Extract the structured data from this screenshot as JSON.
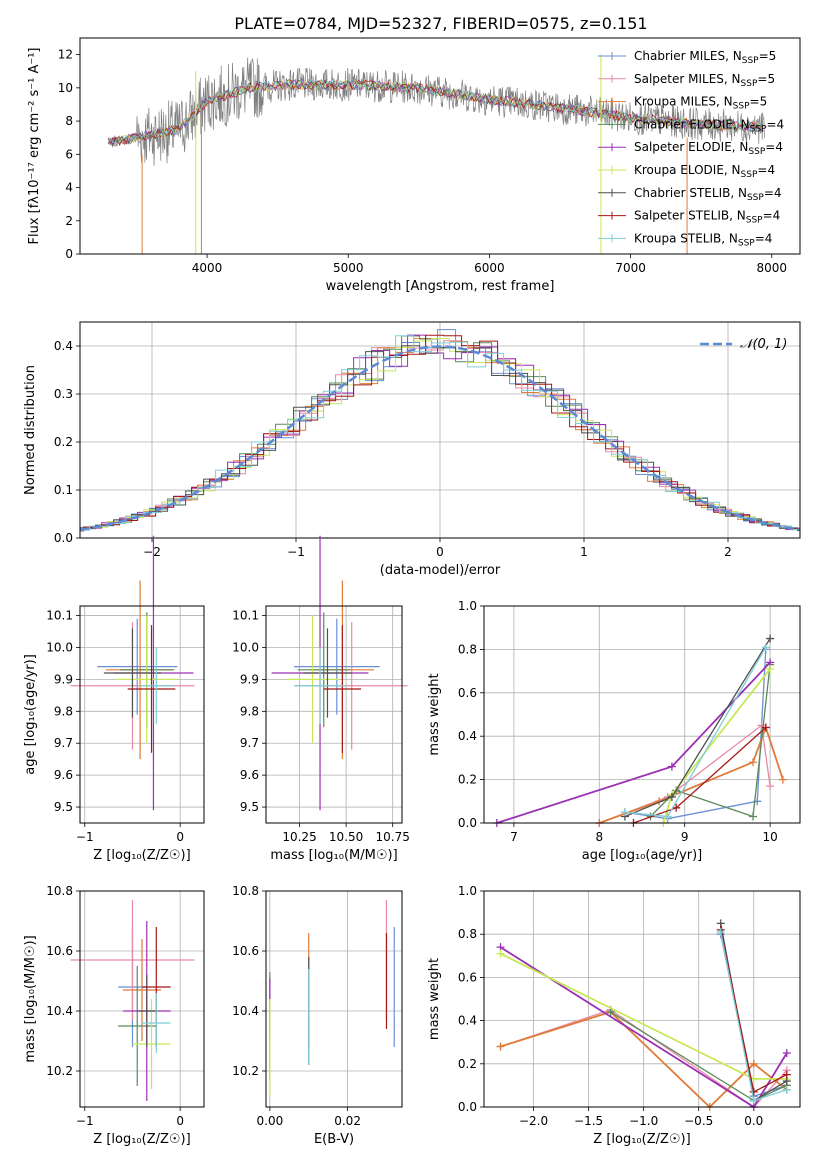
{
  "title": "PLATE=0784, MJD=52327, FIBERID=0575, z=0.151",
  "series_colors": [
    "#6a8fd6",
    "#e88aa7",
    "#e07b39",
    "#5a8a5a",
    "#9b30b5",
    "#c8e85a",
    "#505050",
    "#a51818",
    "#7ecfd8"
  ],
  "series_names": [
    "Chabrier MILES",
    "Salpeter MILES",
    "Kroupa MILES",
    "Chabrier ELODIE",
    "Salpeter ELODIE",
    "Kroupa ELODIE",
    "Chabrier STELIB",
    "Salpeter STELIB",
    "Kroupa STELIB"
  ],
  "chart_data": [
    {
      "type": "line",
      "name": "spectrum",
      "xlabel": "wavelength [Angstrom, rest frame]",
      "ylabel": "Flux [fλ10⁻¹⁷ erg cm⁻² s⁻¹ A⁻¹]",
      "xlim": [
        3100,
        8200
      ],
      "ylim": [
        0,
        13
      ],
      "xticks": [
        "4000",
        "5000",
        "6000",
        "7000",
        "8000"
      ],
      "yticks": [
        "0",
        "2",
        "4",
        "6",
        "8",
        "10",
        "12"
      ],
      "legend": [
        "Chabrier MILES, N_SSP=5",
        "Salpeter MILES, N_SSP=5",
        "Kroupa MILES, N_SSP=5",
        "Chabrier ELODIE, N_SSP=4",
        "Salpeter ELODIE, N_SSP=4",
        "Kroupa ELODIE, N_SSP=4",
        "Chabrier STELIB, N_SSP=4",
        "Salpeter STELIB, N_SSP=4",
        "Kroupa STELIB, N_SSP=4"
      ],
      "legend_placement": "upper right",
      "data_trend": {
        "x": [
          3300,
          3500,
          3800,
          4000,
          4300,
          4600,
          5000,
          5500,
          6000,
          6500,
          7000,
          7500,
          8000
        ],
        "y": [
          6.7,
          7.0,
          7.5,
          9.2,
          10.0,
          10.2,
          10.2,
          10.0,
          9.3,
          8.8,
          8.2,
          7.8,
          7.6
        ]
      }
    },
    {
      "type": "histogram",
      "name": "residuals",
      "xlabel": "(data-model)/error",
      "ylabel": "Normed distribution",
      "xlim": [
        -2.5,
        2.5
      ],
      "ylim": [
        0,
        0.45
      ],
      "xticks": [
        "−2",
        "−1",
        "0",
        "1",
        "2"
      ],
      "yticks": [
        "0.0",
        "0.1",
        "0.2",
        "0.3",
        "0.4"
      ],
      "legend": [
        "𝒩(0, 1)"
      ],
      "legend_placement": "upper right",
      "grid": true
    },
    {
      "type": "scatter",
      "name": "age-vs-Z",
      "xlabel": "Z [log₁₀(Z/Z☉)]",
      "ylabel": "age  [log₁₀(age/yr)]",
      "xlim": [
        -1.05,
        0.25
      ],
      "ylim": [
        9.45,
        10.13
      ],
      "xticks": [
        "−1",
        "0"
      ],
      "yticks": [
        "9.5",
        "9.6",
        "9.7",
        "9.8",
        "9.9",
        "10.0",
        "10.1"
      ],
      "grid": true,
      "points": [
        {
          "x": -0.45,
          "y": 9.94,
          "xerr": 0.42,
          "yerr": 0.15
        },
        {
          "x": -0.5,
          "y": 9.88,
          "xerr": 0.65,
          "yerr": 0.2
        },
        {
          "x": -0.42,
          "y": 9.93,
          "xerr": 0.36,
          "yerr": 0.28
        },
        {
          "x": -0.35,
          "y": 9.93,
          "xerr": 0.28,
          "yerr": 0.18
        },
        {
          "x": -0.28,
          "y": 9.92,
          "xerr": 0.42,
          "yerr": 0.43
        },
        {
          "x": -0.35,
          "y": 9.9,
          "xerr": 0.32,
          "yerr": 0.2
        },
        {
          "x": -0.5,
          "y": 9.92,
          "xerr": 0.3,
          "yerr": 0.14
        },
        {
          "x": -0.3,
          "y": 9.87,
          "xerr": 0.25,
          "yerr": 0.2
        },
        {
          "x": -0.25,
          "y": 9.88,
          "xerr": 0.18,
          "yerr": 0.12
        }
      ]
    },
    {
      "type": "scatter",
      "name": "age-vs-mass",
      "xlabel": "mass [log₁₀(M/M☉)]",
      "ylabel": "",
      "xlim": [
        10.07,
        10.8
      ],
      "ylim": [
        9.45,
        10.13
      ],
      "xticks": [
        "10.25",
        "10.50",
        "10.75"
      ],
      "yticks": [
        "9.5",
        "9.6",
        "9.7",
        "9.8",
        "9.9",
        "10.0",
        "10.1"
      ],
      "grid": true,
      "points": [
        {
          "x": 10.45,
          "y": 9.94,
          "xerr": 0.23,
          "yerr": 0.15
        },
        {
          "x": 10.53,
          "y": 9.88,
          "xerr": 0.3,
          "yerr": 0.2
        },
        {
          "x": 10.48,
          "y": 9.93,
          "xerr": 0.17,
          "yerr": 0.28
        },
        {
          "x": 10.38,
          "y": 9.93,
          "xerr": 0.14,
          "yerr": 0.18
        },
        {
          "x": 10.36,
          "y": 9.92,
          "xerr": 0.26,
          "yerr": 0.43
        },
        {
          "x": 10.32,
          "y": 9.9,
          "xerr": 0.14,
          "yerr": 0.2
        },
        {
          "x": 10.4,
          "y": 9.92,
          "xerr": 0.13,
          "yerr": 0.14
        },
        {
          "x": 10.48,
          "y": 9.87,
          "xerr": 0.1,
          "yerr": 0.2
        },
        {
          "x": 10.36,
          "y": 9.88,
          "xerr": 0.14,
          "yerr": 0.12
        }
      ]
    },
    {
      "type": "line",
      "name": "mass-weight-vs-age",
      "xlabel": "age  [log₁₀(age/yr)]",
      "ylabel": "mass weight",
      "xlim": [
        6.65,
        10.35
      ],
      "ylim": [
        0,
        1
      ],
      "xticks": [
        "7",
        "8",
        "9",
        "10"
      ],
      "yticks": [
        "0.0",
        "0.2",
        "0.4",
        "0.6",
        "0.8",
        "1.0"
      ],
      "grid": true,
      "series": [
        {
          "color_index": 0,
          "x": [
            8.3,
            8.8,
            9.85,
            9.95
          ],
          "y": [
            0.05,
            0.02,
            0.1,
            0.8
          ]
        },
        {
          "color_index": 1,
          "x": [
            8.0,
            8.8,
            9.9,
            10.0
          ],
          "y": [
            0.0,
            0.12,
            0.45,
            0.17
          ]
        },
        {
          "color_index": 2,
          "x": [
            8.0,
            8.7,
            9.8,
            9.95,
            10.15
          ],
          "y": [
            0.0,
            0.1,
            0.28,
            0.44,
            0.2
          ]
        },
        {
          "color_index": 3,
          "x": [
            8.6,
            8.9,
            9.8,
            10.0
          ],
          "y": [
            0.03,
            0.15,
            0.03,
            0.73
          ]
        },
        {
          "color_index": 4,
          "x": [
            6.8,
            8.85,
            10.0
          ],
          "y": [
            0.0,
            0.26,
            0.74
          ]
        },
        {
          "color_index": 5,
          "x": [
            8.75,
            8.85,
            10.0
          ],
          "y": [
            0.0,
            0.13,
            0.71
          ]
        },
        {
          "color_index": 6,
          "x": [
            8.3,
            8.85,
            10.0
          ],
          "y": [
            0.03,
            0.12,
            0.85
          ]
        },
        {
          "color_index": 7,
          "x": [
            8.4,
            8.9,
            9.95
          ],
          "y": [
            0.0,
            0.07,
            0.44
          ]
        },
        {
          "color_index": 8,
          "x": [
            8.3,
            8.8,
            9.95
          ],
          "y": [
            0.05,
            0.03,
            0.81
          ]
        }
      ]
    },
    {
      "type": "scatter",
      "name": "mass-vs-Z",
      "xlabel": "Z [log₁₀(Z/Z☉)]",
      "ylabel": "mass [log₁₀(M/M☉)]",
      "xlim": [
        -1.05,
        0.25
      ],
      "ylim": [
        10.08,
        10.8
      ],
      "xticks": [
        "−1",
        "0"
      ],
      "yticks": [
        "10.2",
        "10.4",
        "10.6",
        "10.8"
      ],
      "grid": true,
      "points": [
        {
          "x": -0.5,
          "y": 10.48,
          "xerr": 0.15,
          "yerr": 0.2
        },
        {
          "x": -0.5,
          "y": 10.57,
          "xerr": 0.65,
          "yerr": 0.2
        },
        {
          "x": -0.4,
          "y": 10.47,
          "xerr": 0.2,
          "yerr": 0.17
        },
        {
          "x": -0.45,
          "y": 10.35,
          "xerr": 0.2,
          "yerr": 0.2
        },
        {
          "x": -0.35,
          "y": 10.4,
          "xerr": 0.25,
          "yerr": 0.3
        },
        {
          "x": -0.3,
          "y": 10.29,
          "xerr": 0.2,
          "yerr": 0.15
        },
        {
          "x": -0.35,
          "y": 10.4,
          "xerr": 0.1,
          "yerr": 0.12
        },
        {
          "x": -0.25,
          "y": 10.48,
          "xerr": 0.15,
          "yerr": 0.2
        },
        {
          "x": -0.25,
          "y": 10.36,
          "xerr": 0.15,
          "yerr": 0.1
        }
      ]
    },
    {
      "type": "scatter",
      "name": "mass-vs-EBV",
      "xlabel": "E(B-V)",
      "ylabel": "",
      "xlim": [
        -0.001,
        0.034
      ],
      "ylim": [
        10.08,
        10.8
      ],
      "xticks": [
        "0.00",
        "0.02"
      ],
      "yticks": [
        "10.2",
        "10.4",
        "10.6",
        "10.8"
      ],
      "grid": true,
      "points": [
        {
          "x": 0.032,
          "y": 10.48,
          "yerr": 0.2
        },
        {
          "x": 0.03,
          "y": 10.57,
          "yerr": 0.2
        },
        {
          "x": 0.01,
          "y": 10.47,
          "yerr": 0.19
        },
        {
          "x": 0.0,
          "y": 10.35,
          "yerr": 0.18
        },
        {
          "x": 0.0,
          "y": 10.41,
          "yerr": 0.1
        },
        {
          "x": 0.0,
          "y": 10.28,
          "yerr": 0.16
        },
        {
          "x": 0.01,
          "y": 10.4,
          "yerr": 0.18
        },
        {
          "x": 0.03,
          "y": 10.5,
          "yerr": 0.16
        },
        {
          "x": 0.01,
          "y": 10.38,
          "yerr": 0.16
        }
      ]
    },
    {
      "type": "line",
      "name": "mass-weight-vs-Z",
      "xlabel": "Z [log₁₀(Z/Z☉)]",
      "ylabel": "mass weight",
      "xlim": [
        -2.45,
        0.42
      ],
      "ylim": [
        0,
        1
      ],
      "xticks": [
        "−2.0",
        "−1.5",
        "−1.0",
        "−0.5",
        "0.0"
      ],
      "yticks": [
        "0.0",
        "0.2",
        "0.4",
        "0.6",
        "0.8",
        "1.0"
      ],
      "grid": true,
      "series": [
        {
          "color_index": 0,
          "x": [
            -0.3,
            0.0,
            0.3
          ],
          "y": [
            0.8,
            0.05,
            0.1
          ]
        },
        {
          "color_index": 1,
          "x": [
            -2.3,
            -1.3,
            0.0,
            0.3
          ],
          "y": [
            0.28,
            0.45,
            0.0,
            0.17
          ]
        },
        {
          "color_index": 2,
          "x": [
            -2.3,
            -1.3,
            -0.4,
            0.0,
            0.3
          ],
          "y": [
            0.28,
            0.44,
            0.0,
            0.2,
            0.08
          ]
        },
        {
          "color_index": 3,
          "x": [
            -1.3,
            0.0,
            0.3
          ],
          "y": [
            0.44,
            0.03,
            0.1
          ]
        },
        {
          "color_index": 4,
          "x": [
            -2.3,
            0.0,
            0.3
          ],
          "y": [
            0.74,
            0.0,
            0.25
          ]
        },
        {
          "color_index": 5,
          "x": [
            -2.3,
            0.0,
            0.3
          ],
          "y": [
            0.71,
            0.13,
            0.13
          ]
        },
        {
          "color_index": 6,
          "x": [
            -0.3,
            0.0,
            0.3
          ],
          "y": [
            0.85,
            0.03,
            0.12
          ]
        },
        {
          "color_index": 7,
          "x": [
            -0.3,
            0.0,
            0.3
          ],
          "y": [
            0.82,
            0.07,
            0.15
          ]
        },
        {
          "color_index": 8,
          "x": [
            -0.3,
            0.0,
            0.3
          ],
          "y": [
            0.81,
            0.03,
            0.08
          ]
        }
      ]
    }
  ]
}
